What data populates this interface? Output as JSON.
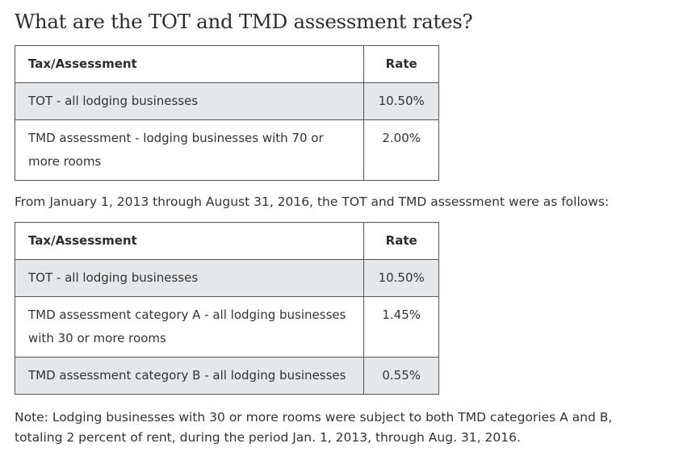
{
  "heading": "What are the TOT and TMD assessment rates?",
  "table_current": {
    "headers": {
      "tax": "Tax/Assessment",
      "rate": "Rate"
    },
    "rows": [
      {
        "tax": "TOT - all lodging businesses",
        "rate": "10.50%"
      },
      {
        "tax": "TMD assessment - lodging businesses with 70 or more rooms",
        "rate": "2.00%"
      }
    ]
  },
  "intro_past": "From January 1, 2013 through August 31, 2016, the TOT and TMD assessment were as follows:",
  "table_past": {
    "headers": {
      "tax": "Tax/Assessment",
      "rate": "Rate"
    },
    "rows": [
      {
        "tax": "TOT - all lodging businesses",
        "rate": "10.50%"
      },
      {
        "tax": "TMD assessment category A - all lodging businesses with 30 or more rooms",
        "rate": "1.45%"
      },
      {
        "tax": "TMD assessment category B - all lodging businesses",
        "rate": "0.55%"
      }
    ]
  },
  "note": "Note: Lodging businesses with 30 or more rooms were subject to both TMD categories A and B, totaling 2 percent of rent, during the period Jan. 1, 2013, through Aug. 31, 2016."
}
